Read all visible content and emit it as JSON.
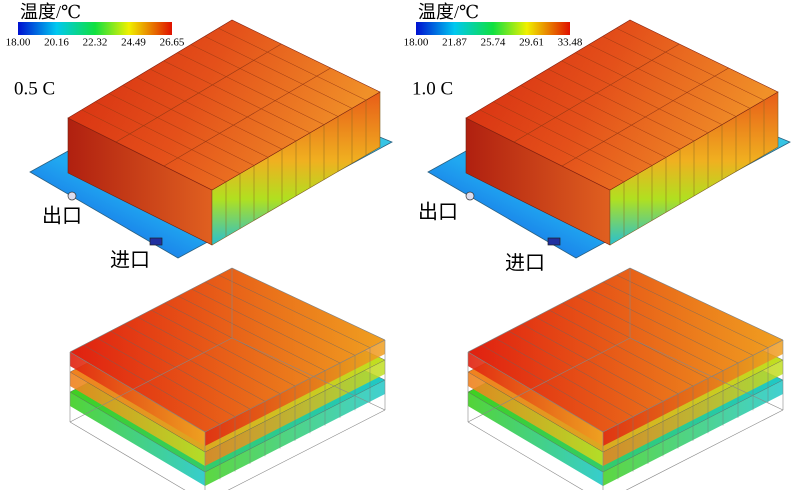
{
  "panels": [
    {
      "legend_title": "温度/℃",
      "ticks": [
        "18.00",
        "20.16",
        "22.32",
        "24.49",
        "26.65"
      ],
      "rate": "0.5 C",
      "outlet": "出口",
      "inlet": "进口"
    },
    {
      "legend_title": "温度/℃",
      "ticks": [
        "18.00",
        "21.87",
        "25.74",
        "29.61",
        "33.48"
      ],
      "rate": "1.0 C",
      "outlet": "出口",
      "inlet": "进口"
    }
  ]
}
